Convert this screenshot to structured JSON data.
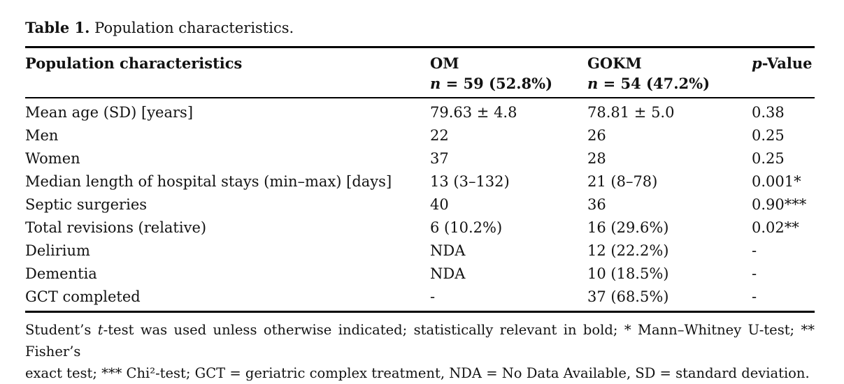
{
  "caption": {
    "label": "Table 1.",
    "text": " Population characteristics."
  },
  "table": {
    "header": {
      "col1": "Population characteristics",
      "om": {
        "name": "OM",
        "n_italic": "n",
        "n_rest": " = 59 (52.8%)"
      },
      "gokm": {
        "name": "GOKM",
        "n_italic": "n",
        "n_rest": " = 54 (47.2%)"
      },
      "p": {
        "italic": "p",
        "rest": "-Value"
      }
    },
    "rows": [
      {
        "label": "Mean age (SD) [years]",
        "om": "79.63 ± 4.8",
        "gokm": "78.81 ± 5.0",
        "p": "0.38"
      },
      {
        "label": "Men",
        "om": "22",
        "gokm": "26",
        "p": "0.25"
      },
      {
        "label": "Women",
        "om": "37",
        "gokm": "28",
        "p": "0.25"
      },
      {
        "label": "Median length of hospital stays (min–max) [days]",
        "om": "13 (3–132)",
        "gokm": "21 (8–78)",
        "p": "0.001*"
      },
      {
        "label": "Septic surgeries",
        "om": "40",
        "gokm": "36",
        "p": "0.90***"
      },
      {
        "label": "Total revisions (relative)",
        "om": "6 (10.2%)",
        "gokm": "16 (29.6%)",
        "p": "0.02**"
      },
      {
        "label": "Delirium",
        "om": "NDA",
        "gokm": "12 (22.2%)",
        "p": "-"
      },
      {
        "label": "Dementia",
        "om": "NDA",
        "gokm": "10 (18.5%)",
        "p": "-"
      },
      {
        "label": "GCT completed",
        "om": "-",
        "gokm": "37 (68.5%)",
        "p": "-"
      }
    ]
  },
  "footnote": {
    "line1_pre": "Student’s ",
    "line1_italic": "t",
    "line1_post": "-test was used unless otherwise indicated; statistically relevant in bold; * Mann–Whitney U-test; ** Fisher’s",
    "line2": "exact test; *** Chi²-test; GCT = geriatric complex treatment, NDA = No Data Available, SD = standard deviation."
  },
  "colors": {
    "text": "#121212",
    "rule": "#000000",
    "background": "#ffffff"
  }
}
